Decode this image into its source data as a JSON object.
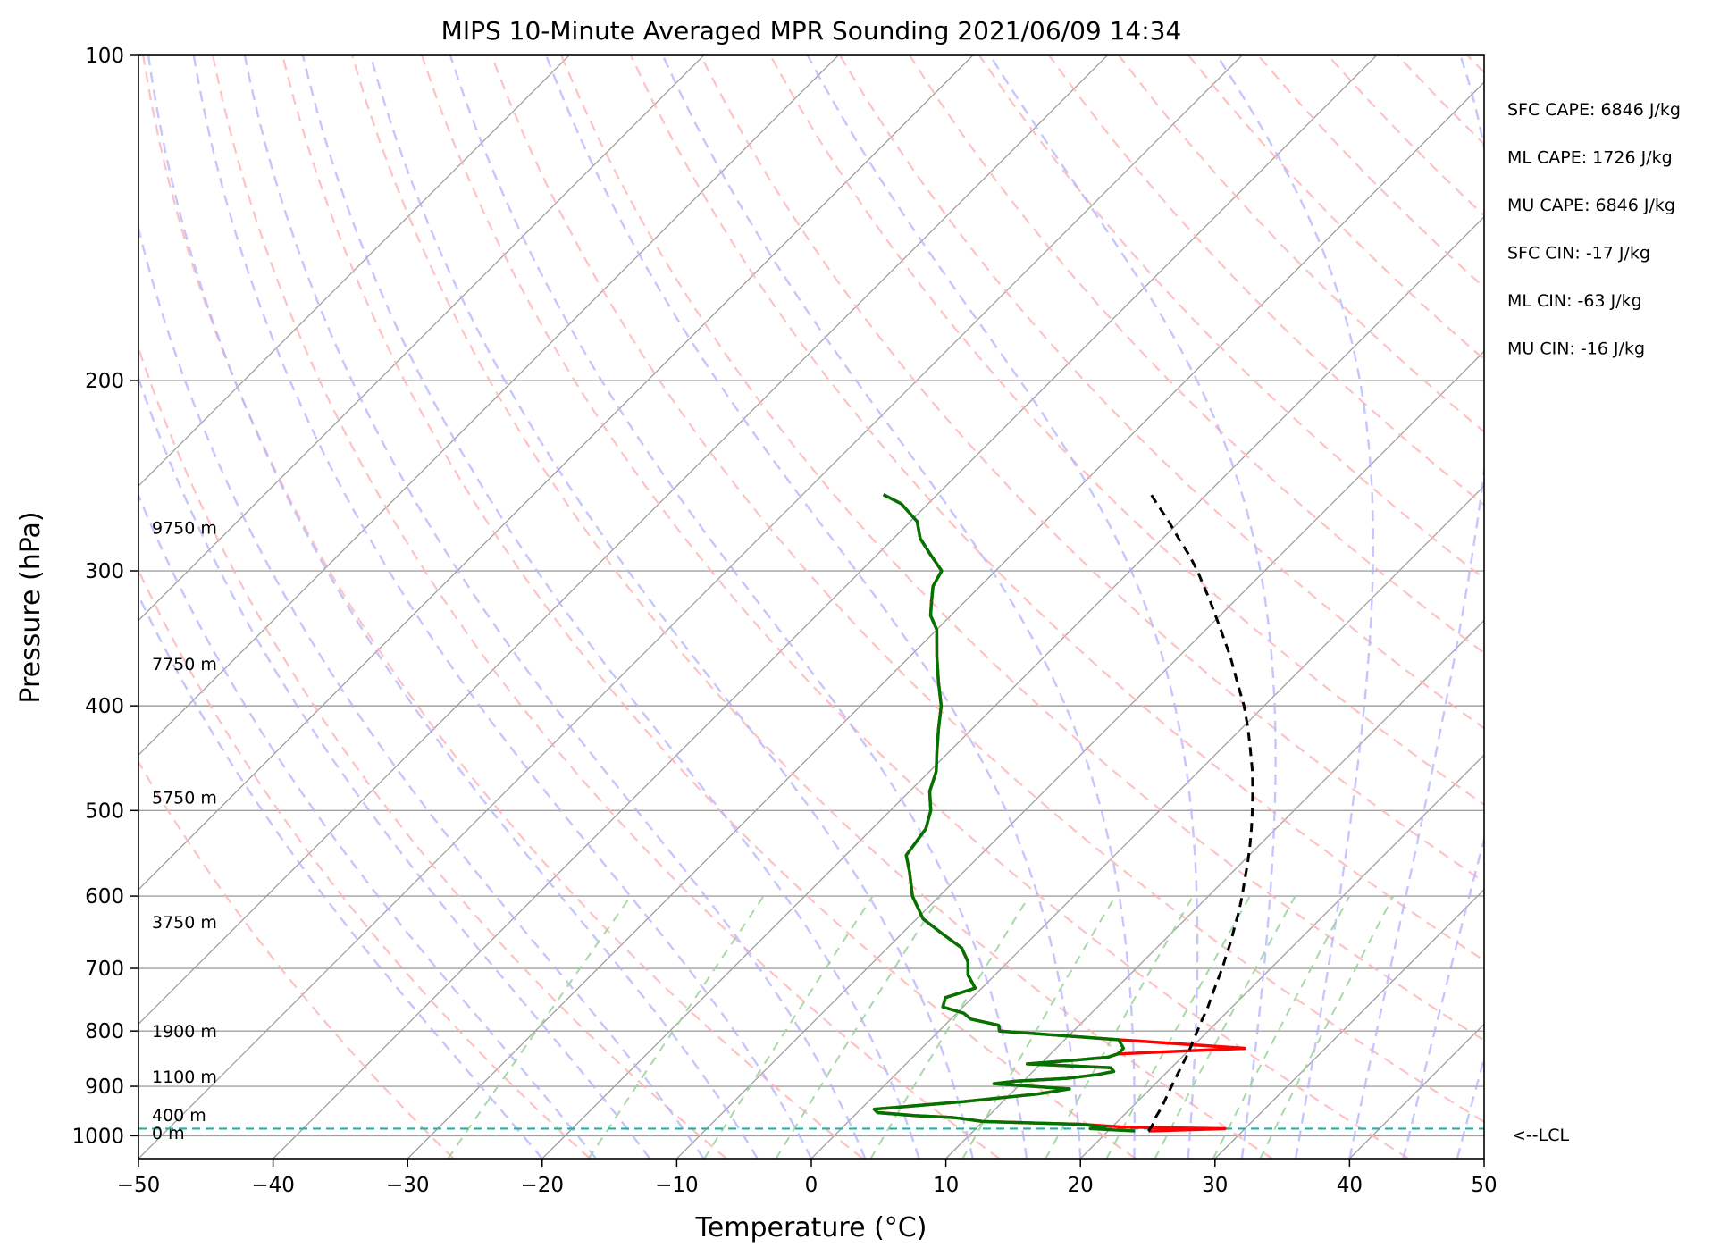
{
  "chart_data": {
    "type": "line",
    "title": "MIPS 10-Minute Averaged MPR Sounding 2021/06/09 14:34",
    "xlabel": "Temperature (°C)",
    "ylabel": "Pressure (hPa)",
    "xlim": [
      -50,
      50
    ],
    "ylim": [
      1050,
      100
    ],
    "y_scale": "log",
    "skew": "45 degrees",
    "x_ticks": [
      -50,
      -40,
      -30,
      -20,
      -10,
      0,
      10,
      20,
      30,
      40,
      50
    ],
    "x_tick_labels": [
      "−50",
      "−40",
      "−30",
      "−20",
      "−10",
      "0",
      "10",
      "20",
      "30",
      "40",
      "50"
    ],
    "y_ticks": [
      100,
      200,
      300,
      400,
      500,
      600,
      700,
      800,
      900,
      1000
    ],
    "y_tick_labels": [
      "100",
      "200",
      "300",
      "400",
      "500",
      "600",
      "700",
      "800",
      "900",
      "1000"
    ],
    "grid": true,
    "colors": {
      "temperature": "#ff0000",
      "dewpoint": "#007400",
      "parcel": "#000000",
      "lcl": "#1fb3a6",
      "dry_adiabats": "#ffb3b3",
      "moist_adiabats": "#b3b3ff",
      "mixing_ratio": "#9fd49f",
      "isotherms": "#a0a0a0"
    },
    "series": [
      {
        "key": "temperature",
        "pressure": [
          990,
          985,
          982,
          976,
          970,
          965,
          962,
          958,
          952,
          945,
          930,
          915,
          905,
          895,
          890,
          885,
          878,
          872,
          865,
          858,
          852,
          846,
          840,
          830,
          815,
          800,
          790,
          780,
          770,
          760,
          745,
          730,
          710,
          690,
          670,
          650,
          630,
          600,
          570,
          550,
          520,
          500,
          480,
          460,
          440,
          420,
          400,
          380,
          360,
          340,
          330,
          320,
          310,
          300,
          290,
          280,
          270,
          260,
          255
        ],
        "values": [
          23.0,
          28.5,
          21.0,
          17.5,
          10.0,
          8.5,
          7.5,
          4.5,
          1.5,
          1.0,
          7.0,
          12.0,
          14.0,
          8.0,
          9.5,
          13.0,
          15.0,
          16.0,
          15.5,
          9.0,
          12.0,
          14.5,
          15.0,
          24.0,
          14.0,
          4.5,
          4.0,
          1.5,
          0.5,
          -1.5,
          -2.0,
          -0.5,
          -2.0,
          -3.0,
          -4.5,
          -7.0,
          -9.5,
          -12.0,
          -14.0,
          -15.5,
          -16.0,
          -17.0,
          -18.5,
          -19.5,
          -21.0,
          -22.5,
          -24.0,
          -26.0,
          -28.0,
          -30.0,
          -31.5,
          -32.5,
          -33.5,
          -34.0,
          -36.0,
          -38.0,
          -39.5,
          -42.0,
          -44.0
        ]
      },
      {
        "key": "dewpoint",
        "pressure": [
          990,
          985,
          982,
          976,
          970,
          965,
          962,
          958,
          952,
          945,
          930,
          915,
          905,
          895,
          890,
          885,
          878,
          872,
          865,
          858,
          852,
          846,
          840,
          830,
          815,
          800,
          790,
          780,
          770,
          760,
          745,
          730,
          710,
          690,
          670,
          650,
          630,
          600,
          570,
          550,
          520,
          500,
          480,
          460,
          440,
          420,
          400,
          380,
          360,
          340,
          330,
          320,
          310,
          300,
          290,
          280,
          270,
          260,
          255
        ],
        "values": [
          22.0,
          18.5,
          19.5,
          17.5,
          10.0,
          8.5,
          7.5,
          4.5,
          1.5,
          1.0,
          7.0,
          12.0,
          14.0,
          8.0,
          9.5,
          13.0,
          15.0,
          16.0,
          15.5,
          9.0,
          12.0,
          14.5,
          15.0,
          15.0,
          14.0,
          4.5,
          4.0,
          1.5,
          0.5,
          -1.5,
          -2.0,
          -0.5,
          -2.0,
          -3.0,
          -4.5,
          -7.0,
          -9.5,
          -12.0,
          -14.0,
          -15.5,
          -16.0,
          -17.0,
          -18.5,
          -19.5,
          -21.0,
          -22.5,
          -24.0,
          -26.0,
          -28.0,
          -30.0,
          -31.5,
          -32.5,
          -33.5,
          -34.0,
          -36.0,
          -38.0,
          -39.5,
          -42.0,
          -44.0
        ]
      },
      {
        "key": "parcel",
        "pressure": [
          990,
          980,
          960,
          940,
          920,
          900,
          880,
          860,
          840,
          820,
          800,
          780,
          760,
          740,
          720,
          700,
          680,
          660,
          640,
          620,
          600,
          580,
          560,
          540,
          520,
          500,
          480,
          460,
          440,
          420,
          400,
          380,
          360,
          340,
          320,
          300,
          290,
          280,
          270,
          260,
          255
        ],
        "values": [
          23.0,
          22.9,
          22.5,
          22.2,
          21.8,
          21.4,
          21.0,
          20.6,
          20.2,
          19.7,
          19.2,
          18.7,
          18.2,
          17.6,
          17.0,
          16.4,
          15.7,
          15.0,
          14.2,
          13.4,
          12.5,
          11.5,
          10.5,
          9.4,
          8.2,
          6.9,
          5.5,
          4.0,
          2.3,
          0.5,
          -1.5,
          -3.8,
          -6.2,
          -8.9,
          -11.8,
          -15.0,
          -16.8,
          -18.8,
          -20.8,
          -23.0,
          -24.1
        ]
      }
    ],
    "lcl_pressure": 985,
    "lcl_label": "<--LCL",
    "height_labels": [
      {
        "label": "0 m",
        "pressure": 992
      },
      {
        "label": "400 m",
        "pressure": 955
      },
      {
        "label": "1100 m",
        "pressure": 880
      },
      {
        "label": "1900 m",
        "pressure": 798
      },
      {
        "label": "3750 m",
        "pressure": 633
      },
      {
        "label": "5750 m",
        "pressure": 485
      },
      {
        "label": "7750 m",
        "pressure": 365
      },
      {
        "label": "9750 m",
        "pressure": 273
      }
    ],
    "annotations": [
      "SFC CAPE: 6846 J/kg",
      "ML CAPE: 1726 J/kg",
      "MU CAPE: 6846 J/kg",
      "SFC CIN: -17 J/kg",
      "ML CIN: -63 J/kg",
      "MU CIN: -16 J/kg"
    ]
  }
}
